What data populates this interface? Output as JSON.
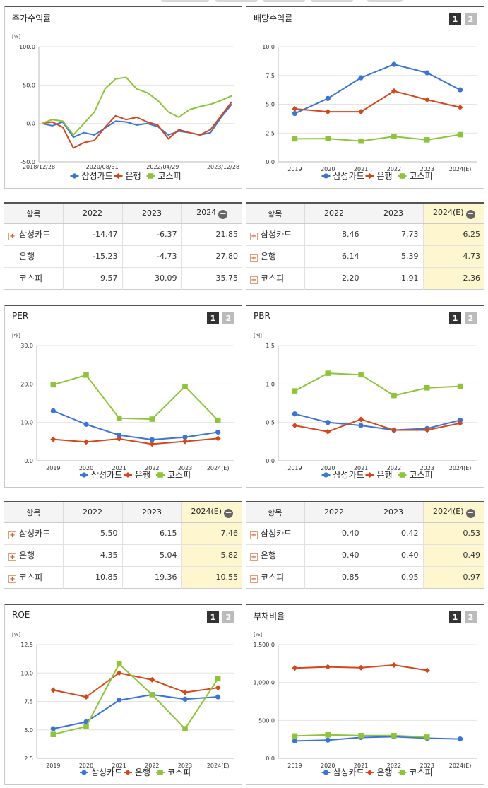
{
  "colors": {
    "samsung": "#3a74d4",
    "bank": "#d4471b",
    "kospi": "#8fc43a"
  },
  "legend": [
    "삼성카드",
    "은행",
    "코스피"
  ],
  "panels": {
    "stock": {
      "title": "주가수익률",
      "unit": "[%]",
      "yticks": [
        "100.0",
        "50.0",
        "0.0",
        "-50.0"
      ],
      "xticks": [
        "2018/12/28",
        "2020/08/31",
        "2022/04/29",
        "2023/12/28"
      ]
    },
    "dividend": {
      "title": "배당수익률",
      "unit": "",
      "buttons": [
        "1",
        "2"
      ],
      "yticks": [
        "10.0",
        "7.5",
        "5.0",
        "2.5",
        "0.0"
      ],
      "xticks": [
        "2019",
        "2020",
        "2021",
        "2022",
        "2023",
        "2024(E)"
      ]
    },
    "per": {
      "title": "PER",
      "unit": "[배]",
      "buttons": [
        "1",
        "2"
      ],
      "yticks": [
        "30.0",
        "20.0",
        "10.0",
        "0.0"
      ],
      "xticks": [
        "2019",
        "2020",
        "2021",
        "2022",
        "2023",
        "2024(E)"
      ]
    },
    "pbr": {
      "title": "PBR",
      "unit": "[배]",
      "buttons": [
        "1",
        "2"
      ],
      "yticks": [
        "1.5",
        "1.0",
        "0.5",
        "0.0"
      ],
      "xticks": [
        "2019",
        "2020",
        "2021",
        "2022",
        "2023",
        "2024(E)"
      ]
    },
    "roe": {
      "title": "ROE",
      "unit": "[%]",
      "buttons": [
        "1",
        "2"
      ],
      "yticks": [
        "12.5",
        "10.0",
        "7.5",
        "5.0",
        "2.5"
      ],
      "xticks": [
        "2019",
        "2020",
        "2021",
        "2022",
        "2023",
        "2024(E)"
      ]
    },
    "debt": {
      "title": "부채비율",
      "unit": "[%]",
      "buttons": [
        "1",
        "2"
      ],
      "yticks": [
        "1,500.0",
        "1,000.0",
        "500.0",
        "0.0"
      ],
      "xticks": [
        "2019",
        "2020",
        "2021",
        "2022",
        "2023",
        "2024(E)"
      ]
    }
  },
  "tables": {
    "stock": {
      "headers": [
        "항목",
        "2022",
        "2023",
        "2024"
      ],
      "rows": [
        {
          "name": "삼성카드",
          "values": [
            "-14.47",
            "-6.37",
            "21.85"
          ]
        },
        {
          "name": "은행",
          "values": [
            "-15.23",
            "-4.73",
            "27.80"
          ]
        },
        {
          "name": "코스피",
          "values": [
            "9.57",
            "30.09",
            "35.75"
          ]
        }
      ]
    },
    "dividend": {
      "headers": [
        "항목",
        "2022",
        "2023",
        "2024(E)"
      ],
      "rows": [
        {
          "name": "삼성카드",
          "values": [
            "8.46",
            "7.73",
            "6.25"
          ]
        },
        {
          "name": "은행",
          "values": [
            "6.14",
            "5.39",
            "4.73"
          ]
        },
        {
          "name": "코스피",
          "values": [
            "2.20",
            "1.91",
            "2.36"
          ]
        }
      ]
    },
    "per": {
      "headers": [
        "항목",
        "2022",
        "2023",
        "2024(E)"
      ],
      "rows": [
        {
          "name": "삼성카드",
          "values": [
            "5.50",
            "6.15",
            "7.46"
          ]
        },
        {
          "name": "은행",
          "values": [
            "4.35",
            "5.04",
            "5.82"
          ]
        },
        {
          "name": "코스피",
          "values": [
            "10.85",
            "19.36",
            "10.55"
          ]
        }
      ]
    },
    "pbr": {
      "headers": [
        "항목",
        "2022",
        "2023",
        "2024(E)"
      ],
      "rows": [
        {
          "name": "삼성카드",
          "values": [
            "0.40",
            "0.42",
            "0.53"
          ]
        },
        {
          "name": "은행",
          "values": [
            "0.40",
            "0.40",
            "0.49"
          ]
        },
        {
          "name": "코스피",
          "values": [
            "0.85",
            "0.95",
            "0.97"
          ]
        }
      ]
    }
  },
  "chart_data": [
    {
      "id": "stock",
      "type": "line",
      "title": "주가수익률",
      "ylabel": "[%]",
      "ylim": [
        -50,
        100
      ],
      "x": [
        "2018/12/28",
        "2019/06",
        "2019/12",
        "2020/03",
        "2020/06",
        "2020/08/31",
        "2020/12",
        "2021/03",
        "2021/06",
        "2021/09",
        "2021/12",
        "2022/04/29",
        "2022/08",
        "2022/12",
        "2023/04",
        "2023/08",
        "2023/12/28",
        "2024/04",
        "2024/08"
      ],
      "series": [
        {
          "name": "삼성카드",
          "values": [
            0,
            -3,
            2,
            -18,
            -12,
            -15,
            -6,
            3,
            2,
            -2,
            0,
            -4,
            -15,
            -10,
            -12,
            -15,
            -12,
            8,
            25
          ]
        },
        {
          "name": "은행",
          "values": [
            0,
            2,
            -5,
            -32,
            -25,
            -22,
            -5,
            10,
            5,
            8,
            2,
            -2,
            -20,
            -8,
            -12,
            -15,
            -8,
            10,
            28
          ]
        },
        {
          "name": "코스피",
          "values": [
            0,
            5,
            3,
            -15,
            0,
            15,
            45,
            58,
            60,
            45,
            40,
            30,
            15,
            8,
            18,
            22,
            25,
            30,
            36
          ]
        }
      ]
    },
    {
      "id": "dividend",
      "type": "line",
      "title": "배당수익률",
      "ylim": [
        0,
        10
      ],
      "x": [
        "2019",
        "2020",
        "2021",
        "2022",
        "2023",
        "2024(E)"
      ],
      "series": [
        {
          "name": "삼성카드",
          "values": [
            4.2,
            5.5,
            7.3,
            8.46,
            7.73,
            6.25
          ]
        },
        {
          "name": "은행",
          "values": [
            4.6,
            4.35,
            4.35,
            6.14,
            5.39,
            4.73
          ]
        },
        {
          "name": "코스피",
          "values": [
            2.0,
            2.02,
            1.8,
            2.2,
            1.91,
            2.36
          ]
        }
      ]
    },
    {
      "id": "per",
      "type": "line",
      "title": "PER",
      "ylabel": "[배]",
      "ylim": [
        0,
        30
      ],
      "x": [
        "2019",
        "2020",
        "2021",
        "2022",
        "2023",
        "2024(E)"
      ],
      "series": [
        {
          "name": "삼성카드",
          "values": [
            13.0,
            9.5,
            6.7,
            5.5,
            6.15,
            7.46
          ]
        },
        {
          "name": "은행",
          "values": [
            5.6,
            4.9,
            5.7,
            4.35,
            5.04,
            5.82
          ]
        },
        {
          "name": "코스피",
          "values": [
            19.8,
            22.3,
            11.1,
            10.85,
            19.36,
            10.55
          ]
        }
      ]
    },
    {
      "id": "pbr",
      "type": "line",
      "title": "PBR",
      "ylabel": "[배]",
      "ylim": [
        0,
        1.5
      ],
      "x": [
        "2019",
        "2020",
        "2021",
        "2022",
        "2023",
        "2024(E)"
      ],
      "series": [
        {
          "name": "삼성카드",
          "values": [
            0.61,
            0.5,
            0.46,
            0.4,
            0.42,
            0.53
          ]
        },
        {
          "name": "은행",
          "values": [
            0.46,
            0.38,
            0.54,
            0.4,
            0.4,
            0.49
          ]
        },
        {
          "name": "코스피",
          "values": [
            0.91,
            1.14,
            1.12,
            0.85,
            0.95,
            0.97
          ]
        }
      ]
    },
    {
      "id": "roe",
      "type": "line",
      "title": "ROE",
      "ylabel": "[%]",
      "ylim": [
        2.5,
        12.5
      ],
      "x": [
        "2019",
        "2020",
        "2021",
        "2022",
        "2023",
        "2024(E)"
      ],
      "series": [
        {
          "name": "삼성카드",
          "values": [
            5.1,
            5.7,
            7.6,
            8.1,
            7.7,
            7.9
          ]
        },
        {
          "name": "은행",
          "values": [
            8.5,
            7.9,
            10.0,
            9.4,
            8.3,
            8.7
          ]
        },
        {
          "name": "코스피",
          "values": [
            4.6,
            5.3,
            10.8,
            8.1,
            5.1,
            9.5
          ]
        }
      ]
    },
    {
      "id": "debt",
      "type": "line",
      "title": "부채비율",
      "ylabel": "[%]",
      "ylim": [
        0,
        1500
      ],
      "x": [
        "2019",
        "2020",
        "2021",
        "2022",
        "2023",
        "2024(E)"
      ],
      "series": [
        {
          "name": "삼성카드",
          "values": [
            230,
            240,
            275,
            285,
            265,
            255
          ]
        },
        {
          "name": "은행",
          "values": [
            1190,
            1205,
            1195,
            1230,
            1160,
            null
          ]
        },
        {
          "name": "코스피",
          "values": [
            295,
            310,
            300,
            300,
            280,
            null
          ]
        }
      ]
    }
  ]
}
